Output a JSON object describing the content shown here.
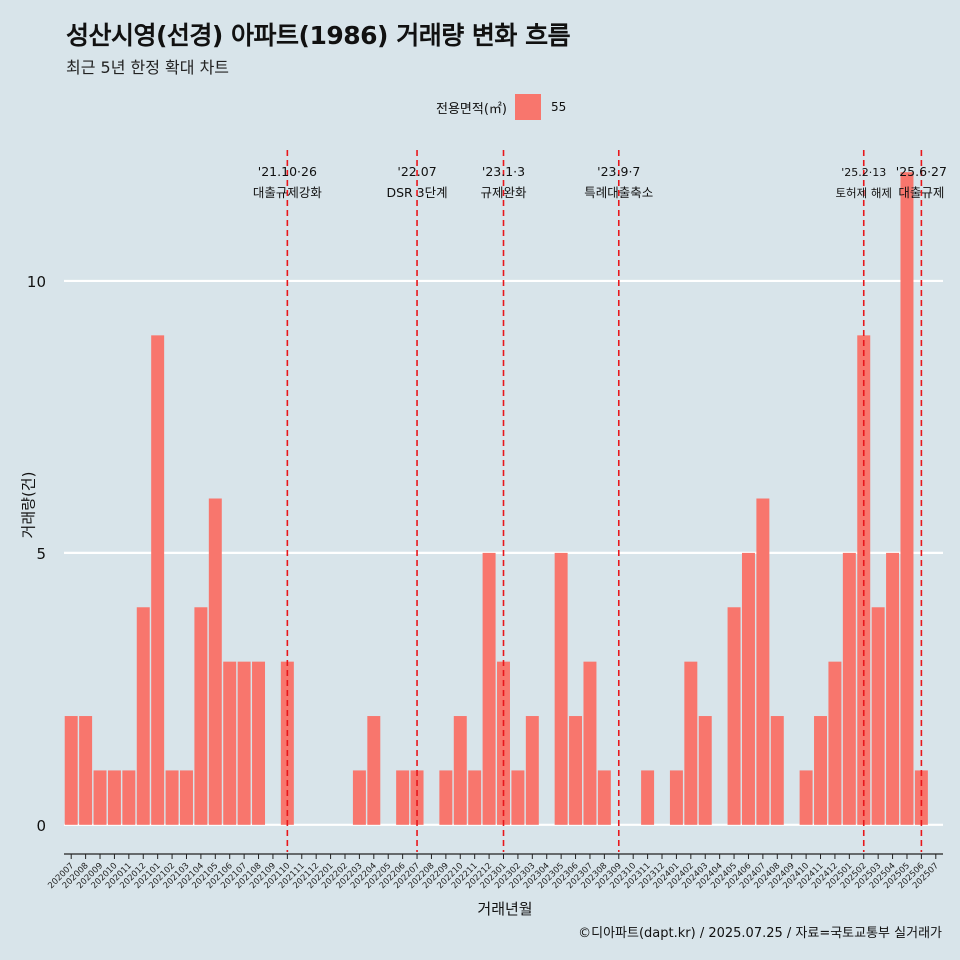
{
  "title": "성산시영(선경) 아파트(1986) 거래량 변화 흐름",
  "subtitle": "최근 5년 한정 확대 차트",
  "caption": "©디아파트(dapt.kr) / 2025.07.25 / 자료=국토교통부 실거래가",
  "legend": {
    "title": "전용면적(㎡)",
    "label": "55",
    "color": "#f8766d"
  },
  "chart_data": {
    "type": "bar",
    "xlabel": "거래년월",
    "ylabel": "거래량(건)",
    "ylim": [
      -0.5,
      12.5
    ],
    "yticks": [
      0,
      5,
      10
    ],
    "grid": true,
    "legend_position": "top",
    "categories": [
      "202007",
      "202008",
      "202009",
      "202010",
      "202011",
      "202012",
      "202101",
      "202102",
      "202103",
      "202104",
      "202105",
      "202106",
      "202107",
      "202108",
      "202109",
      "202110",
      "202111",
      "202112",
      "202201",
      "202202",
      "202203",
      "202204",
      "202205",
      "202206",
      "202207",
      "202208",
      "202209",
      "202210",
      "202211",
      "202212",
      "202301",
      "202302",
      "202303",
      "202304",
      "202305",
      "202306",
      "202307",
      "202308",
      "202309",
      "202310",
      "202311",
      "202312",
      "202401",
      "202402",
      "202403",
      "202404",
      "202405",
      "202406",
      "202407",
      "202408",
      "202409",
      "202410",
      "202411",
      "202412",
      "202501",
      "202502",
      "202503",
      "202504",
      "202505",
      "202506",
      "202507"
    ],
    "series": [
      {
        "name": "55",
        "color": "#f8766d",
        "values": [
          2,
          2,
          1,
          1,
          1,
          4,
          9,
          1,
          1,
          4,
          6,
          3,
          3,
          3,
          0,
          3,
          0,
          0,
          0,
          0,
          1,
          2,
          0,
          1,
          1,
          0,
          1,
          2,
          1,
          5,
          3,
          1,
          2,
          0,
          5,
          2,
          3,
          1,
          0,
          0,
          1,
          0,
          1,
          3,
          2,
          0,
          4,
          5,
          6,
          2,
          0,
          1,
          2,
          3,
          5,
          9,
          4,
          5,
          12,
          1,
          0
        ]
      }
    ],
    "annotations": [
      {
        "x": "202110",
        "line1": "'21.10·26",
        "line2": "대출규제강화"
      },
      {
        "x": "202207",
        "line1": "'22.07",
        "line2": "DSR 3단계"
      },
      {
        "x": "202301",
        "line1": "'23.1·3",
        "line2": "규제완화"
      },
      {
        "x": "202309",
        "line1": "'23.9·7",
        "line2": "특례대출축소"
      },
      {
        "x": "202502",
        "line1": "'25.2·13",
        "line2": "토허제 해제"
      },
      {
        "x": "202506",
        "line1": "'25.6·27",
        "line2": "대출규제"
      }
    ],
    "annotation_color": "#e8161b"
  }
}
